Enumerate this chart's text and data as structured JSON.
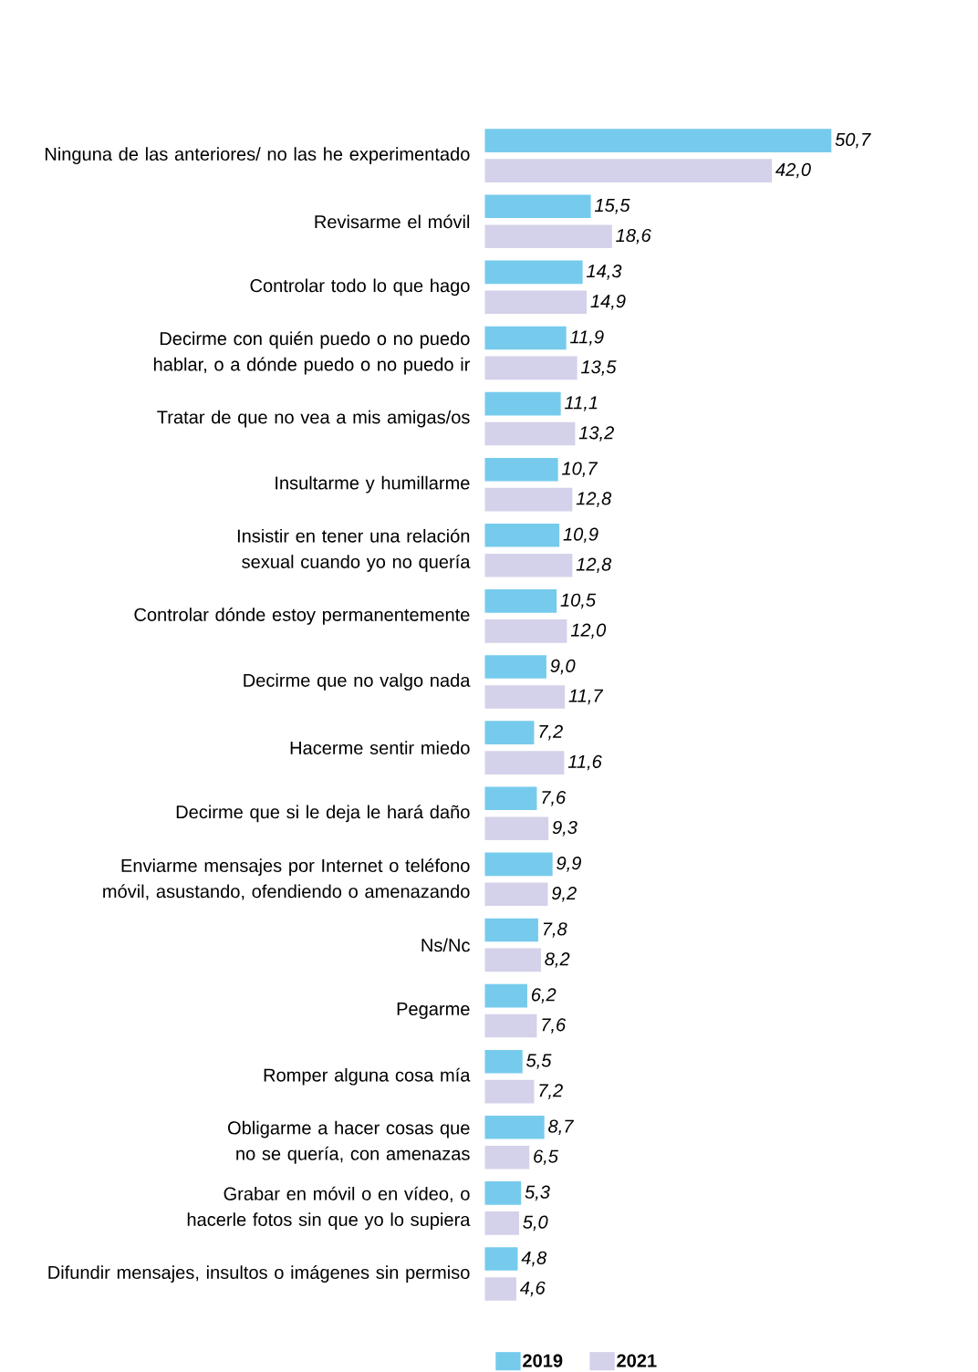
{
  "chart_data": {
    "type": "bar",
    "orientation": "horizontal",
    "legend": "bottom",
    "categories": [
      "Ninguna de las anteriores/ no las he experimentado",
      "Revisarme el móvil",
      "Controlar todo lo que hago",
      "Decirme con quién puedo o no puedo hablar, o a dónde puedo o no puedo ir",
      "Tratar de que no vea a mis amigas/os",
      "Insultarme y humillarme",
      "Insistir en tener una relación sexual cuando yo no quería",
      "Controlar dónde estoy permanentemente",
      "Decirme que no valgo nada",
      "Hacerme sentir miedo",
      "Decirme que si le deja le hará daño",
      "Enviarme mensajes por Internet o teléfono móvil, asustando, ofendiendo o amenazando",
      "Ns/Nc",
      "Pegarme",
      "Romper alguna cosa mía",
      "Obligarme a hacer cosas que no se quería, con amenazas",
      "Grabar en móvil o en vídeo, o hacerle fotos sin que yo lo supiera",
      "Difundir mensajes, insultos o imágenes sin permiso"
    ],
    "series": [
      {
        "name": "2019",
        "color": "#76cbed",
        "values": [
          50.7,
          15.5,
          14.3,
          11.9,
          11.1,
          10.7,
          10.9,
          10.5,
          9.0,
          7.2,
          7.6,
          9.9,
          7.8,
          6.2,
          5.5,
          8.7,
          5.3,
          4.8
        ],
        "value_labels": [
          "50,7",
          "15,5",
          "14,3",
          "11,9",
          "11,1",
          "10,7",
          "10,9",
          "10,5",
          "9,0",
          "7,2",
          "7,6",
          "9,9",
          "7,8",
          "6,2",
          "5,5",
          "8,7",
          "5,3",
          "4,8"
        ]
      },
      {
        "name": "2021",
        "color": "#d4d1ea",
        "values": [
          42.0,
          18.6,
          14.9,
          13.5,
          13.2,
          12.8,
          12.8,
          12.0,
          11.7,
          11.6,
          9.3,
          9.2,
          8.2,
          7.6,
          7.2,
          6.5,
          5.0,
          4.6
        ],
        "value_labels": [
          "42,0",
          "18,6",
          "14,9",
          "13,5",
          "13,2",
          "12,8",
          "12,8",
          "12,0",
          "11,7",
          "11,6",
          "9,3",
          "9,2",
          "8,2",
          "7,6",
          "7,2",
          "6,5",
          "5,0",
          "4,6"
        ]
      }
    ]
  }
}
